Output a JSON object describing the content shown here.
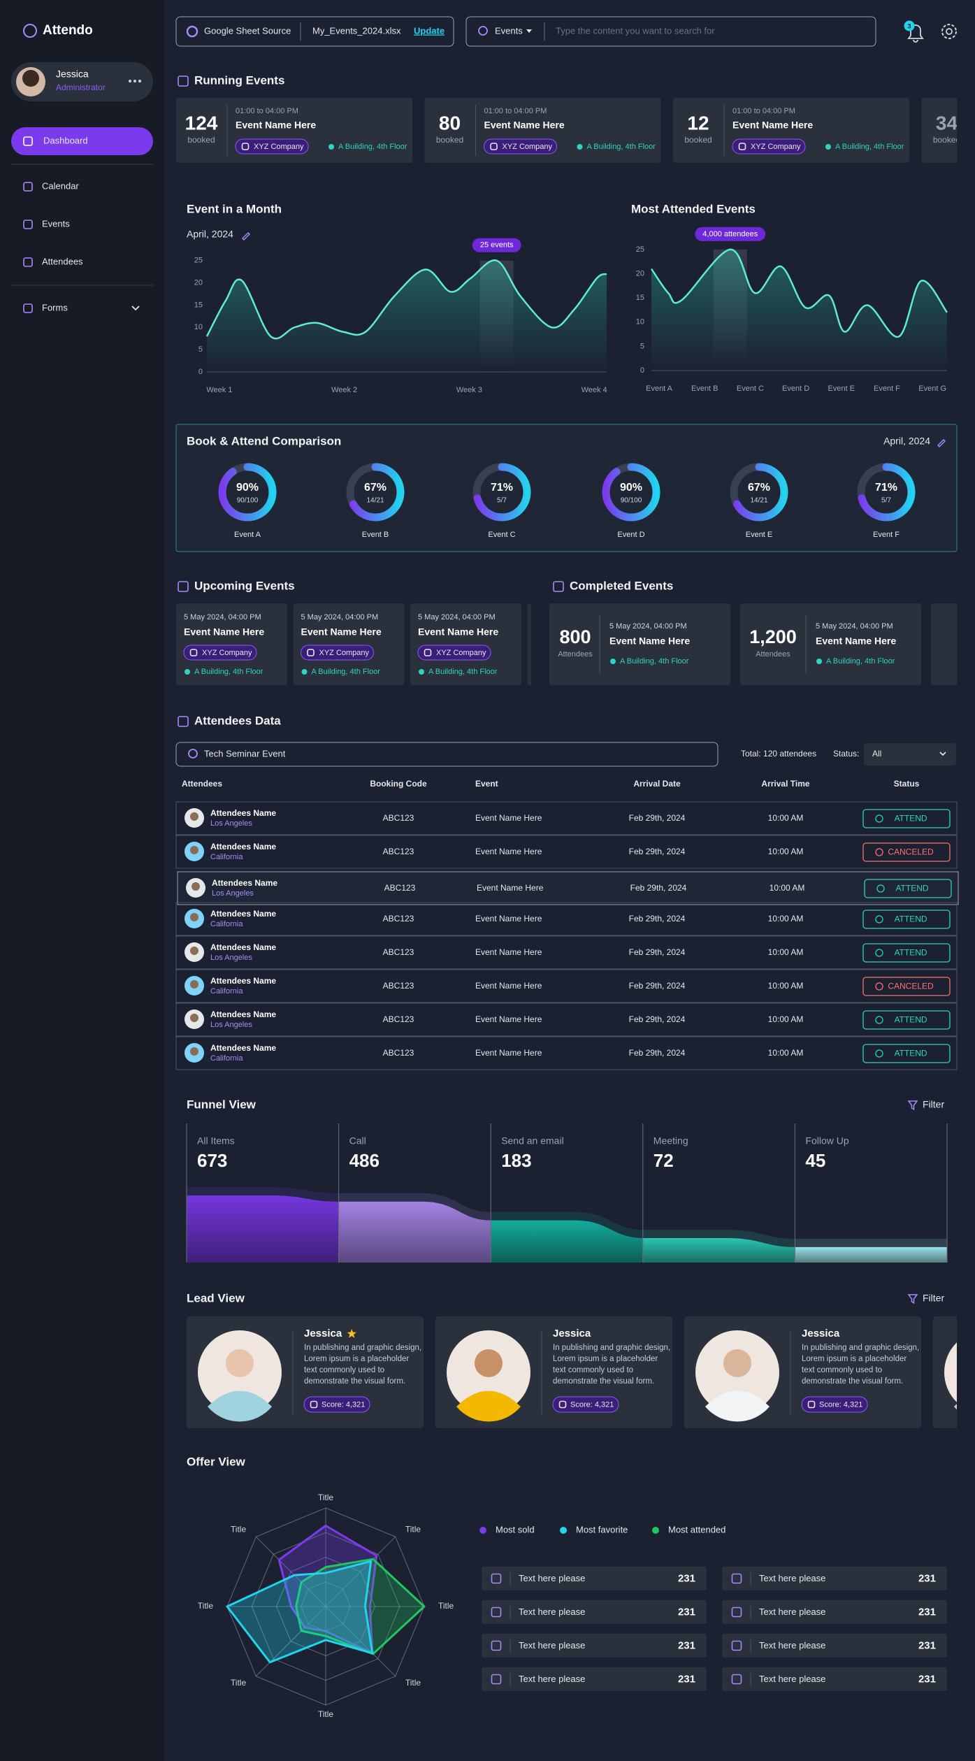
{
  "sidebar": {
    "brand": "Attendo",
    "user": {
      "name": "Jessica",
      "role": "Administrator"
    },
    "nav": [
      "Dashboard",
      "Calendar",
      "Events",
      "Attendees",
      "Forms"
    ],
    "active_nav": 0
  },
  "topbar": {
    "source_label": "Google Sheet Source",
    "file": "My_Events_2024.xlsx",
    "update": "Update",
    "search_scope": "Events",
    "search_placeholder": "Type the content you want to search for",
    "notifications": 3
  },
  "running_events": {
    "title": "Running Events",
    "items": [
      {
        "count": 124,
        "count_label": "booked",
        "time": "01:00 to 04:00 PM",
        "name": "Event Name Here",
        "company": "XYZ Company",
        "location": "A Building, 4th Floor"
      },
      {
        "count": 80,
        "count_label": "booked",
        "time": "01:00 to 04:00 PM",
        "name": "Event Name Here",
        "company": "XYZ Company",
        "location": "A Building, 4th Floor"
      },
      {
        "count": 12,
        "count_label": "booked",
        "time": "01:00 to 04:00 PM",
        "name": "Event Name Here",
        "company": "XYZ Company",
        "location": "A Building, 4th Floor"
      },
      {
        "count": 34,
        "count_label": "booked"
      }
    ]
  },
  "event_month_chart": {
    "type": "line",
    "title": "Event in a Month",
    "period": "April, 2024",
    "annotation": "25 events",
    "x": [
      0.9,
      1.05,
      1.18,
      1.41,
      1.6,
      1.78,
      1.99,
      2.17,
      2.4,
      2.65,
      2.85,
      3.01,
      3.22,
      3.41,
      3.66,
      3.84,
      4.02,
      4.1
    ],
    "values": [
      8,
      16,
      20.5,
      8,
      10,
      11,
      9,
      9,
      17,
      23,
      18,
      21,
      25,
      17,
      10,
      14,
      21,
      22
    ],
    "color": "#5eead4",
    "xlim": [
      0.9,
      4.1
    ],
    "xticks": [
      {
        "value": 1,
        "label": "Week 1"
      },
      {
        "value": 2,
        "label": "Week 2"
      },
      {
        "value": 3,
        "label": "Week 3"
      },
      {
        "value": 4,
        "label": "Week 4"
      }
    ],
    "ylim": [
      0,
      27
    ],
    "yticks": [
      0,
      5,
      10,
      15,
      20,
      25
    ]
  },
  "most_attended_chart": {
    "type": "line",
    "title": "Most Attended Events",
    "annotation": "4,000 attendees",
    "x": [
      -0.17,
      0.2,
      0.49,
      1.56,
      2.1,
      2.67,
      3.21,
      3.73,
      4.07,
      4.57,
      5.26,
      5.75,
      6.32
    ],
    "values": [
      21,
      16,
      14.5,
      25,
      16,
      21.5,
      13,
      15.5,
      8,
      13.5,
      7,
      18.5,
      12
    ],
    "color": "#5eead4",
    "xlim": [
      -0.17,
      6.32
    ],
    "xticks": [
      {
        "value": 0,
        "label": "Event A"
      },
      {
        "value": 1,
        "label": "Event B"
      },
      {
        "value": 2,
        "label": "Event C"
      },
      {
        "value": 3,
        "label": "Event D"
      },
      {
        "value": 4,
        "label": "Event E"
      },
      {
        "value": 5,
        "label": "Event F"
      },
      {
        "value": 6,
        "label": "Event G"
      }
    ],
    "ylim": [
      0,
      27
    ],
    "yticks": [
      0,
      5,
      10,
      15,
      20,
      25
    ]
  },
  "comparison": {
    "type": "donut",
    "title": "Book & Attend Comparison",
    "period": "April, 2024",
    "categories": [
      "Event A",
      "Event B",
      "Event C",
      "Event D",
      "Event E",
      "Event F"
    ],
    "values": [
      90,
      67,
      71,
      90,
      67,
      71
    ],
    "value_labels": [
      "90%",
      "67%",
      "71%",
      "90%",
      "67%",
      "71%"
    ],
    "ratios": [
      "90/100",
      "14/21",
      "5/7",
      "90/100",
      "14/21",
      "5/7"
    ],
    "ylim": [
      0,
      100
    ]
  },
  "upcoming_events": {
    "title": "Upcoming Events",
    "items": [
      {
        "date": "5 May 2024, 04:00 PM",
        "name": "Event Name Here",
        "company": "XYZ Company",
        "location": "A Building, 4th Floor"
      },
      {
        "date": "5 May 2024, 04:00 PM",
        "name": "Event Name Here",
        "company": "XYZ Company",
        "location": "A Building, 4th Floor"
      },
      {
        "date": "5 May 2024, 04:00 PM",
        "name": "Event Name Here",
        "company": "XYZ Company",
        "location": "A Building, 4th Floor"
      }
    ]
  },
  "completed_events": {
    "title": "Completed Events",
    "items": [
      {
        "count": 800,
        "count_label": "Attendees",
        "date": "5 May 2024, 04:00 PM",
        "name": "Event Name Here",
        "location": "A Building, 4th Floor"
      },
      {
        "count": {
          "value": 1200,
          "label": "1,200"
        },
        "count_label": "Attendees",
        "date": "5 May 2024, 04:00 PM",
        "name": "Event Name Here",
        "location": "A Building, 4th Floor"
      }
    ]
  },
  "attendees": {
    "title": "Attendees Data",
    "search": "Tech Seminar Event",
    "total": "Total: 120 attendees",
    "status_label": "Status:",
    "status_filter": "All",
    "columns": [
      "Attendees",
      "Booking Code",
      "Event",
      "Arrival Date",
      "Arrival Time",
      "Status"
    ],
    "status_colors": {
      "ATTEND": "#2dd4bf",
      "CANCELED": "#f87171"
    },
    "rows": [
      {
        "name": "Attendees Name",
        "location": "Los Angeles",
        "code": "ABC123",
        "event": "Event Name Here",
        "date": "Feb 29th, 2024",
        "time": "10:00 AM",
        "status": "ATTEND"
      },
      {
        "name": "Attendees Name",
        "location": "California",
        "code": "ABC123",
        "event": "Event Name Here",
        "date": "Feb 29th, 2024",
        "time": "10:00 AM",
        "status": "CANCELED"
      },
      {
        "name": "Attendees Name",
        "location": "Los Angeles",
        "code": "ABC123",
        "event": "Event Name Here",
        "date": "Feb 29th, 2024",
        "time": "10:00 AM",
        "status": "ATTEND"
      },
      {
        "name": "Attendees Name",
        "location": "California",
        "code": "ABC123",
        "event": "Event Name Here",
        "date": "Feb 29th, 2024",
        "time": "10:00 AM",
        "status": "ATTEND"
      },
      {
        "name": "Attendees Name",
        "location": "Los Angeles",
        "code": "ABC123",
        "event": "Event Name Here",
        "date": "Feb 29th, 2024",
        "time": "10:00 AM",
        "status": "ATTEND"
      },
      {
        "name": "Attendees Name",
        "location": "California",
        "code": "ABC123",
        "event": "Event Name Here",
        "date": "Feb 29th, 2024",
        "time": "10:00 AM",
        "status": "CANCELED"
      },
      {
        "name": "Attendees Name",
        "location": "Los Angeles",
        "code": "ABC123",
        "event": "Event Name Here",
        "date": "Feb 29th, 2024",
        "time": "10:00 AM",
        "status": "ATTEND"
      },
      {
        "name": "Attendees Name",
        "location": "California",
        "code": "ABC123",
        "event": "Event Name Here",
        "date": "Feb 29th, 2024",
        "time": "10:00 AM",
        "status": "ATTEND"
      }
    ]
  },
  "funnel": {
    "type": "funnel",
    "title": "Funnel View",
    "filter": "Filter",
    "categories": [
      "All Items",
      "Call",
      "Send an email",
      "Meeting",
      "Follow Up"
    ],
    "values": [
      673,
      486,
      183,
      72,
      45
    ],
    "colors": [
      "#7c3aed",
      "#b08cf5",
      "#14b8a6",
      "#2dd4bf",
      "#a5f3fc"
    ]
  },
  "leads": {
    "title": "Lead View",
    "filter": "Filter",
    "items": [
      {
        "name": "Jessica",
        "starred": true,
        "description": "In publishing and graphic design, Lorem ipsum is a  placeholder text commonly used to demonstrate the visual form.",
        "score": "Score: 4,321"
      },
      {
        "name": "Jessica",
        "starred": false,
        "description": "In publishing and graphic design, Lorem ipsum is a  placeholder text commonly used to demonstrate the visual form.",
        "score": "Score: 4,321"
      },
      {
        "name": "Jessica",
        "starred": false,
        "description": "In publishing and graphic design, Lorem ipsum is a  placeholder text commonly used to demonstrate the visual form.",
        "score": "Score: 4,321"
      }
    ]
  },
  "offer": {
    "type": "radar",
    "title": "Offer View",
    "axes": [
      "Title",
      "Title",
      "Title",
      "Title",
      "Title",
      "Title",
      "Title",
      "Title"
    ],
    "rlim": [
      0,
      100
    ],
    "rticks": [
      25,
      50,
      75,
      100
    ],
    "series": [
      {
        "name": "Most sold",
        "color": "#7c3aed",
        "values": [
          82,
          73,
          45,
          67,
          25,
          30,
          35,
          67
        ]
      },
      {
        "name": "Most favorite",
        "color": "#22d3ee",
        "values": [
          34,
          65,
          40,
          67,
          34,
          80,
          100,
          45
        ]
      },
      {
        "name": "Most attended",
        "color": "#22c55e",
        "values": [
          40,
          68,
          100,
          68,
          30,
          35,
          30,
          35
        ]
      }
    ],
    "stats": [
      {
        "label": "Text here please",
        "value": 231
      },
      {
        "label": "Text here please",
        "value": 231
      },
      {
        "label": "Text here please",
        "value": 231
      },
      {
        "label": "Text here please",
        "value": 231
      },
      {
        "label": "Text here please",
        "value": 231
      },
      {
        "label": "Text here please",
        "value": 231
      },
      {
        "label": "Text here please",
        "value": 231
      },
      {
        "label": "Text here please",
        "value": 231
      }
    ]
  }
}
